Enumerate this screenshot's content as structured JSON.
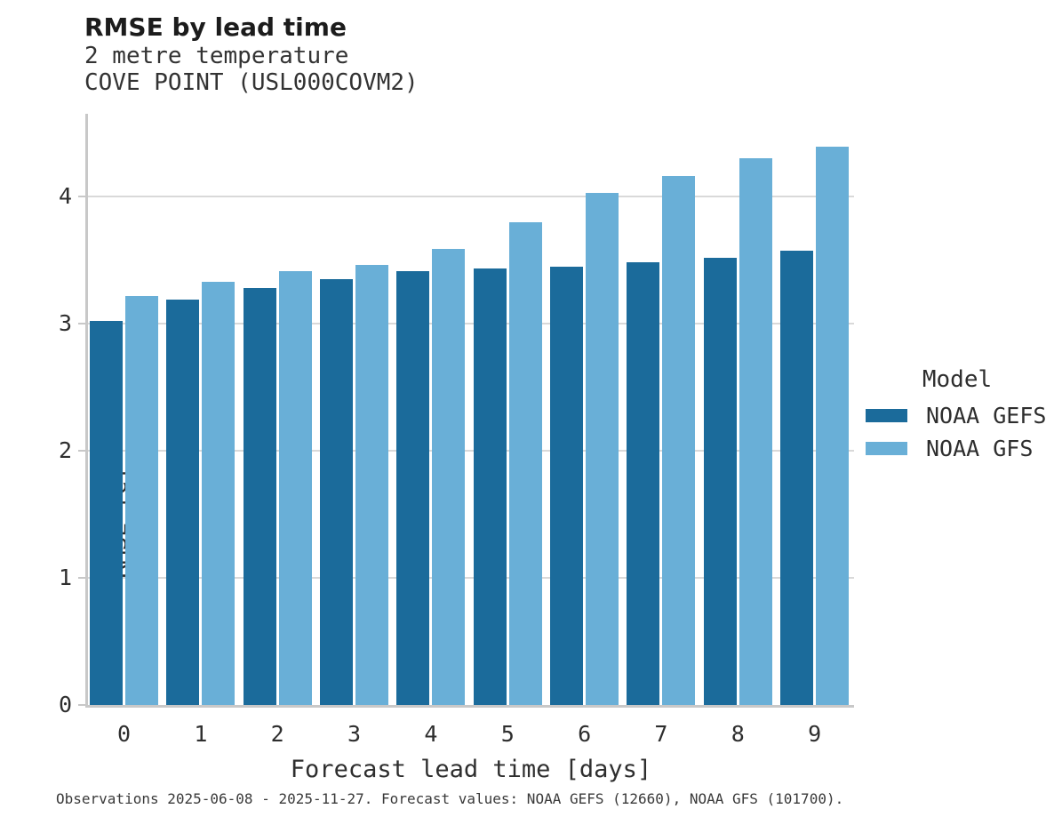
{
  "header": {
    "title": "RMSE by lead time",
    "subtitle_line1": "2 metre temperature",
    "subtitle_line2": "COVE POINT (USL000COVM2)"
  },
  "legend": {
    "title": "Model",
    "items": [
      {
        "label": "NOAA GEFS",
        "color": "#1b6b9b"
      },
      {
        "label": "NOAA GFS",
        "color": "#69afd7"
      }
    ]
  },
  "footer": {
    "caption": "Observations 2025-06-08 - 2025-11-27. Forecast values: NOAA GEFS (12660), NOAA GFS (101700)."
  },
  "chart_data": {
    "type": "bar",
    "title": "RMSE by lead time",
    "subtitle": [
      "2 metre temperature",
      "COVE POINT (USL000COVM2)"
    ],
    "categories": [
      "0",
      "1",
      "2",
      "3",
      "4",
      "5",
      "6",
      "7",
      "8",
      "9"
    ],
    "series": [
      {
        "name": "NOAA GEFS",
        "color": "#1b6b9b",
        "values": [
          3.02,
          3.19,
          3.28,
          3.35,
          3.41,
          3.43,
          3.45,
          3.48,
          3.52,
          3.57
        ]
      },
      {
        "name": "NOAA GFS",
        "color": "#69afd7",
        "values": [
          3.22,
          3.33,
          3.41,
          3.46,
          3.59,
          3.8,
          4.03,
          4.16,
          4.3,
          4.39
        ]
      }
    ],
    "xlabel": "Forecast lead time [days]",
    "ylabel": "RMSE [C]",
    "ylim": [
      0,
      4.65
    ],
    "yticks": [
      0,
      1,
      2,
      3,
      4
    ],
    "grid": true,
    "legend_position": "right",
    "annotation": "Observations 2025-06-08 - 2025-11-27. Forecast values: NOAA GEFS (12660), NOAA GFS (101700)."
  }
}
